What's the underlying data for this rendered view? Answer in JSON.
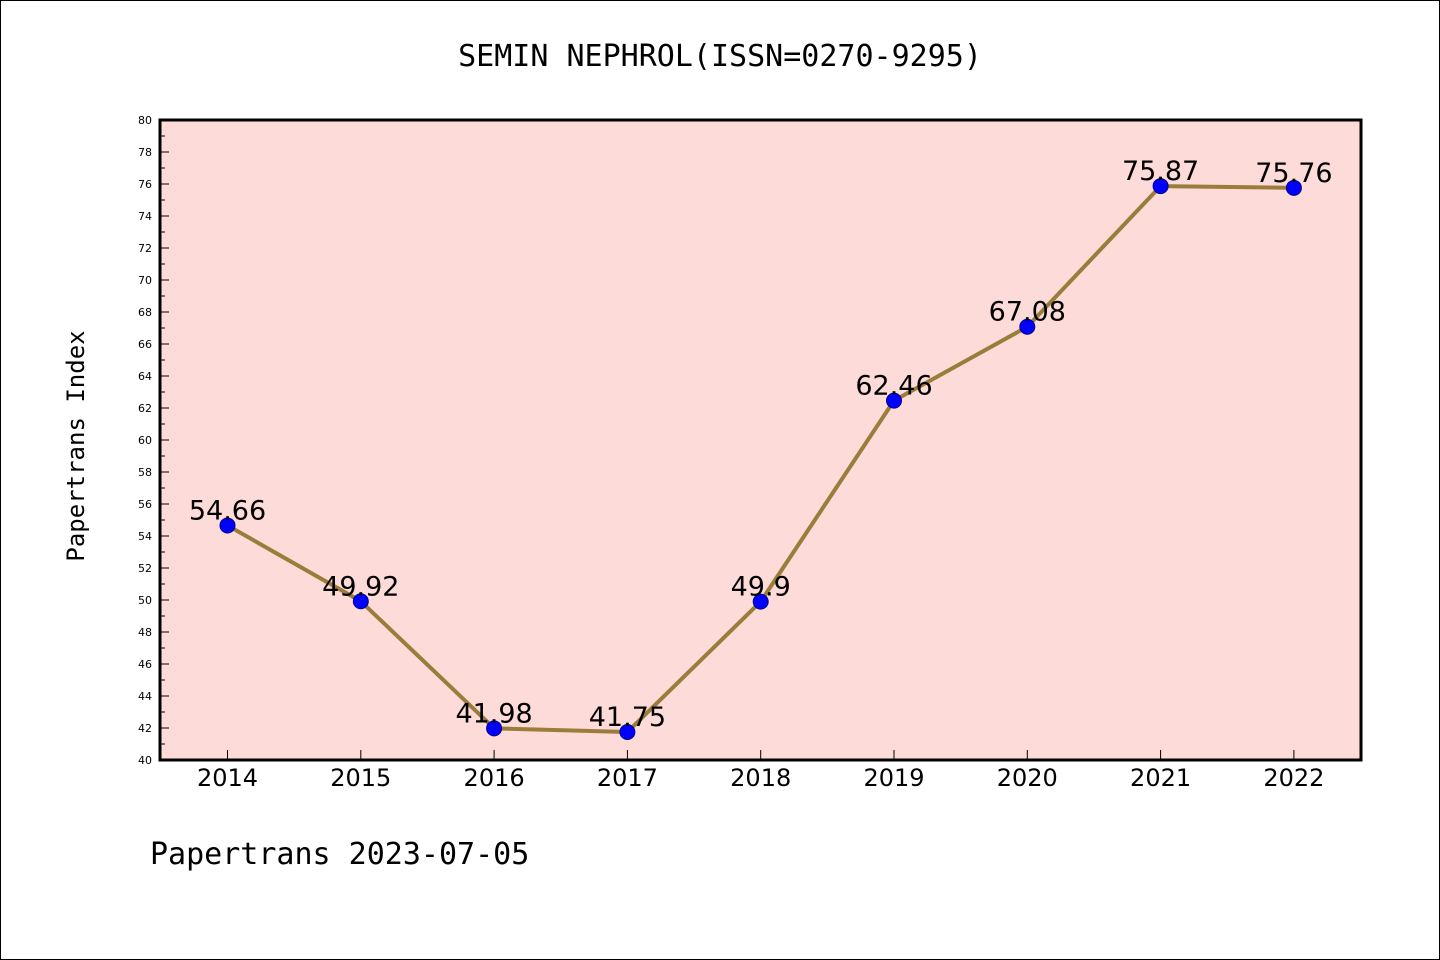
{
  "chart_data": {
    "type": "line",
    "title": "SEMIN NEPHROL(ISSN=0270-9295)",
    "xlabel": "",
    "ylabel": "Papertrans Index",
    "categories": [
      "2014",
      "2015",
      "2016",
      "2017",
      "2018",
      "2019",
      "2020",
      "2021",
      "2022"
    ],
    "series": [
      {
        "values": [
          54.66,
          49.92,
          41.98,
          41.75,
          49.9,
          62.46,
          67.08,
          75.87,
          75.76
        ],
        "data_labels": [
          "54.66",
          "49.92",
          "41.98",
          "41.75",
          "49.9",
          "62.46",
          "67.08",
          "75.87",
          "75.76"
        ]
      }
    ],
    "ylim": [
      40,
      80
    ],
    "y_ticks": [
      "40",
      "42",
      "44",
      "46",
      "48",
      "50",
      "52",
      "54",
      "56",
      "58",
      "60",
      "62",
      "64",
      "66",
      "68",
      "70",
      "72",
      "74",
      "76",
      "78",
      "80"
    ],
    "grid": false,
    "legend": "none",
    "footer": "Papertrans 2023-07-05",
    "colors": {
      "plot_background": "#fddbd8",
      "line": "#9a7d3a",
      "marker": "#0000ff",
      "marker_edge": "#00008b",
      "axis": "#000000"
    }
  }
}
